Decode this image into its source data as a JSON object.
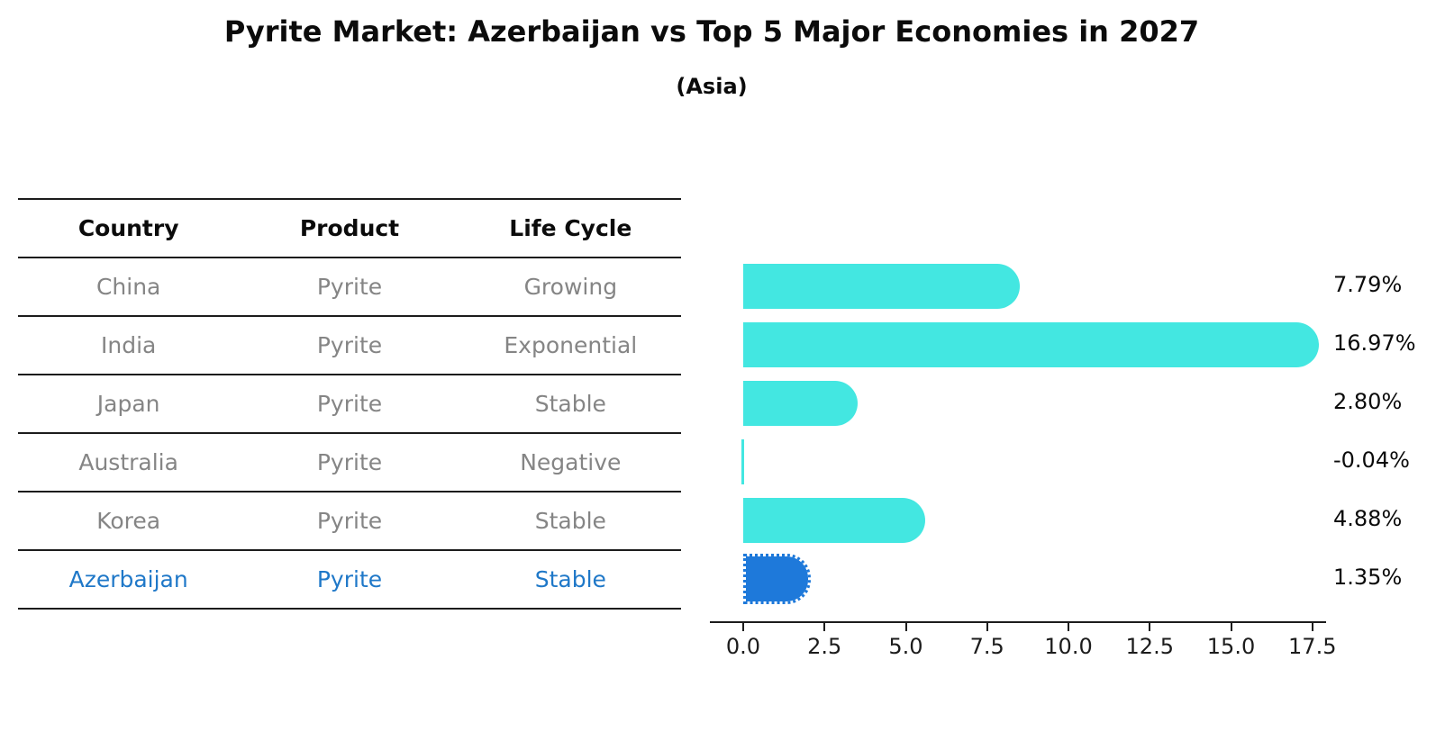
{
  "title": "Pyrite Market: Azerbaijan vs Top 5 Major Economies in 2027",
  "subtitle": "(Asia)",
  "table": {
    "headers": [
      "Country",
      "Product",
      "Life Cycle"
    ],
    "rows": [
      {
        "country": "China",
        "product": "Pyrite",
        "life_cycle": "Growing",
        "highlighted": false
      },
      {
        "country": "India",
        "product": "Pyrite",
        "life_cycle": "Exponential",
        "highlighted": false
      },
      {
        "country": "Japan",
        "product": "Pyrite",
        "life_cycle": "Stable",
        "highlighted": false
      },
      {
        "country": "Australia",
        "product": "Pyrite",
        "life_cycle": "Negative",
        "highlighted": false
      },
      {
        "country": "Korea",
        "product": "Pyrite",
        "life_cycle": "Stable",
        "highlighted": false
      },
      {
        "country": "Azerbaijan",
        "product": "Pyrite",
        "life_cycle": "Stable",
        "highlighted": true
      }
    ]
  },
  "chart_data": {
    "type": "bar",
    "orientation": "horizontal",
    "categories": [
      "China",
      "India",
      "Japan",
      "Australia",
      "Korea",
      "Azerbaijan"
    ],
    "values": [
      7.79,
      16.97,
      2.8,
      -0.04,
      4.88,
      1.35
    ],
    "value_labels": [
      "7.79%",
      "16.97%",
      "2.80%",
      "-0.04%",
      "4.88%",
      "1.35%"
    ],
    "x_ticks": [
      0.0,
      2.5,
      5.0,
      7.5,
      10.0,
      12.5,
      15.0,
      17.5
    ],
    "x_tick_labels": [
      "0.0",
      "2.5",
      "5.0",
      "7.5",
      "10.0",
      "12.5",
      "15.0",
      "17.5"
    ],
    "xlim": [
      0,
      17.9
    ],
    "grid": false,
    "legend": "none",
    "bar_color": "#43e7e1",
    "highlight_color": "#1e79da",
    "highlight_index": 5,
    "highlight_style": "dotted-border"
  },
  "colors": {
    "highlight_text": "#1f78c8",
    "muted_text": "#858585",
    "line": "#1c1c1c"
  }
}
